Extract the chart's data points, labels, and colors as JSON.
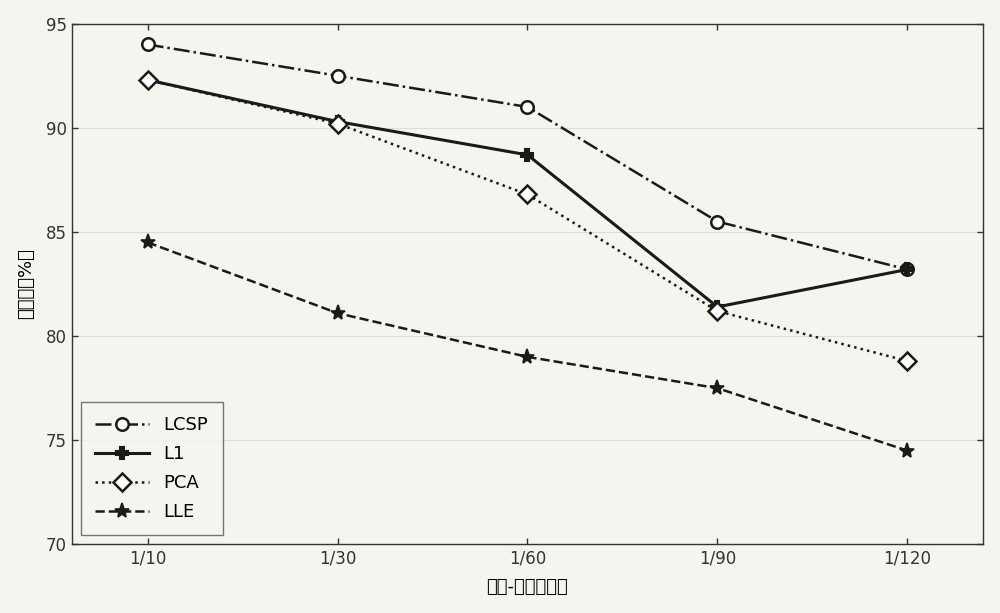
{
  "x_labels": [
    "1/10",
    "1/30",
    "1/60",
    "1/90",
    "1/120"
  ],
  "x_values": [
    0,
    1,
    2,
    3,
    4
  ],
  "series": [
    {
      "label": "LCSP",
      "y": [
        94.0,
        92.5,
        91.0,
        85.5,
        83.2
      ],
      "linestyle": "-.",
      "marker": "o",
      "markersize": 9,
      "linewidth": 1.8,
      "color": "#1a1a1a",
      "markerfacecolor": "white",
      "markeredgewidth": 1.8
    },
    {
      "label": "L1",
      "y": [
        92.3,
        90.3,
        88.7,
        81.4,
        83.2
      ],
      "linestyle": "-",
      "marker": "P",
      "markersize": 9,
      "linewidth": 2.2,
      "color": "#1a1a1a",
      "markerfacecolor": "#1a1a1a",
      "markeredgewidth": 1.5
    },
    {
      "label": "PCA",
      "y": [
        92.3,
        90.2,
        86.8,
        81.2,
        78.8
      ],
      "linestyle": ":",
      "marker": "D",
      "markersize": 9,
      "linewidth": 1.8,
      "color": "#1a1a1a",
      "markerfacecolor": "white",
      "markeredgewidth": 1.8
    },
    {
      "label": "LLE",
      "y": [
        84.5,
        81.1,
        79.0,
        77.5,
        74.5
      ],
      "linestyle": "--",
      "marker": "*",
      "markersize": 11,
      "linewidth": 1.8,
      "color": "#1a1a1a",
      "markerfacecolor": "#1a1a1a",
      "markeredgewidth": 1.2
    }
  ],
  "ylabel": "识别率（%）",
  "xlabel": "训练-测试样本比",
  "ylim": [
    70,
    95
  ],
  "yticks": [
    70,
    75,
    80,
    85,
    90,
    95
  ],
  "background_color": "#f5f5f0",
  "plot_bg_color": "#f5f5f0",
  "legend_loc": "lower left",
  "legend_fontsize": 13,
  "axis_fontsize": 13,
  "tick_fontsize": 12
}
